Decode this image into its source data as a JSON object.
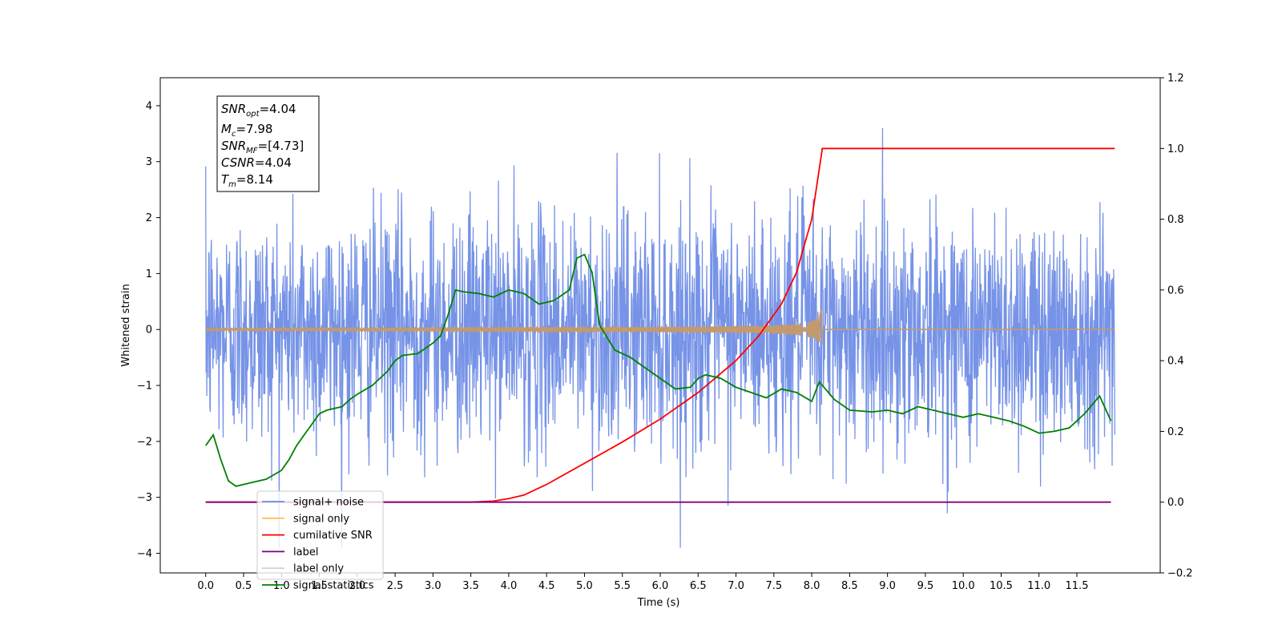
{
  "chart_data": {
    "type": "line",
    "xlabel": "Time (s)",
    "ylabel": "Whitened strain",
    "xlim": [
      -0.6,
      12.6
    ],
    "ylim": [
      -4.35,
      4.5
    ],
    "y2lim": [
      -0.2,
      1.2
    ],
    "x_ticks": [
      "0.0",
      "0.5",
      "1.0",
      "1.5",
      "2.0",
      "2.5",
      "3.0",
      "3.5",
      "4.0",
      "4.5",
      "5.0",
      "5.5",
      "6.0",
      "6.5",
      "7.0",
      "7.5",
      "8.0",
      "8.5",
      "9.0",
      "9.5",
      "10.0",
      "10.5",
      "11.0",
      "11.5"
    ],
    "y_ticks": [
      "4",
      "3",
      "2",
      "1",
      "0",
      "−1",
      "−2",
      "−3",
      "−4"
    ],
    "y2_ticks": [
      "1.2",
      "1.0",
      "0.8",
      "0.6",
      "0.4",
      "0.2",
      "0.0",
      "−0.2"
    ],
    "legend": {
      "position": "lower-left",
      "entries": [
        {
          "label": "signal+ noise",
          "color": "#6f8de6"
        },
        {
          "label": "signal only",
          "color": "#ffbf5a"
        },
        {
          "label": "cumilative SNR",
          "color": "#ff0000"
        },
        {
          "label": "label",
          "color": "#800080"
        },
        {
          "label": "label only",
          "color": "#d4d4d4"
        },
        {
          "label": "signal statistics",
          "color": "#008000"
        }
      ]
    },
    "annotation": {
      "snr_opt": {
        "base": "SNR",
        "sub": "opt",
        "value": "=4.04"
      },
      "mc": {
        "base": "M",
        "sub": "c",
        "value": "=7.98"
      },
      "snr_mf": {
        "base": "SNR",
        "sub": "MF",
        "value": "=[4.73]"
      },
      "csnr": {
        "base": "CSNR",
        "sub": "",
        "value": "=4.04"
      },
      "tm": {
        "base": "T",
        "sub": "m",
        "value": "=8.14"
      }
    },
    "series": [
      {
        "name": "signal+ noise",
        "axis": "left",
        "color": "#6f8de6",
        "kind": "noise",
        "x_range": [
          0.0,
          12.0
        ],
        "amplitude_std": 1.0,
        "samples": 2400
      },
      {
        "name": "signal only",
        "axis": "left",
        "color": "#c49a6c",
        "kind": "chirp",
        "x_range": [
          0.0,
          12.0
        ],
        "merger_time": 8.14,
        "peak_amplitude": 0.45
      },
      {
        "name": "cumilative SNR",
        "axis": "right",
        "color": "#ff0000",
        "x": [
          0.0,
          3.0,
          3.5,
          3.8,
          4.0,
          4.2,
          4.5,
          5.0,
          5.5,
          6.0,
          6.5,
          7.0,
          7.3,
          7.6,
          7.8,
          8.0,
          8.14,
          8.2,
          12.0
        ],
        "values": [
          0.0,
          0.0,
          0.0,
          0.003,
          0.01,
          0.02,
          0.05,
          0.11,
          0.17,
          0.235,
          0.31,
          0.4,
          0.47,
          0.56,
          0.65,
          0.8,
          1.0,
          1.0,
          1.0
        ]
      },
      {
        "name": "label",
        "axis": "right",
        "color": "#800080",
        "x": [
          0.0,
          11.95
        ],
        "values": [
          0.0,
          0.0
        ]
      },
      {
        "name": "signal statistics",
        "axis": "right",
        "color": "#008000",
        "x": [
          0.0,
          0.1,
          0.2,
          0.3,
          0.4,
          0.5,
          0.6,
          0.8,
          1.0,
          1.1,
          1.2,
          1.3,
          1.4,
          1.5,
          1.6,
          1.8,
          1.9,
          2.0,
          2.2,
          2.4,
          2.5,
          2.6,
          2.8,
          3.0,
          3.1,
          3.2,
          3.3,
          3.4,
          3.6,
          3.8,
          4.0,
          4.2,
          4.4,
          4.6,
          4.8,
          4.9,
          5.0,
          5.1,
          5.2,
          5.4,
          5.6,
          5.8,
          6.0,
          6.2,
          6.4,
          6.5,
          6.6,
          6.8,
          7.0,
          7.2,
          7.4,
          7.6,
          7.8,
          8.0,
          8.1,
          8.3,
          8.5,
          8.8,
          9.0,
          9.2,
          9.4,
          9.6,
          9.8,
          10.0,
          10.2,
          10.4,
          10.6,
          10.8,
          11.0,
          11.2,
          11.4,
          11.6,
          11.8,
          11.95
        ],
        "values": [
          0.16,
          0.19,
          0.12,
          0.06,
          0.045,
          0.05,
          0.055,
          0.065,
          0.09,
          0.12,
          0.16,
          0.19,
          0.22,
          0.25,
          0.26,
          0.27,
          0.29,
          0.305,
          0.33,
          0.37,
          0.4,
          0.415,
          0.42,
          0.45,
          0.47,
          0.53,
          0.6,
          0.595,
          0.59,
          0.58,
          0.6,
          0.59,
          0.56,
          0.57,
          0.6,
          0.69,
          0.7,
          0.65,
          0.5,
          0.43,
          0.41,
          0.38,
          0.35,
          0.32,
          0.325,
          0.35,
          0.36,
          0.35,
          0.325,
          0.31,
          0.295,
          0.32,
          0.31,
          0.285,
          0.34,
          0.29,
          0.26,
          0.255,
          0.26,
          0.25,
          0.27,
          0.26,
          0.25,
          0.24,
          0.25,
          0.24,
          0.23,
          0.215,
          0.195,
          0.2,
          0.21,
          0.25,
          0.3,
          0.23
        ]
      }
    ]
  }
}
